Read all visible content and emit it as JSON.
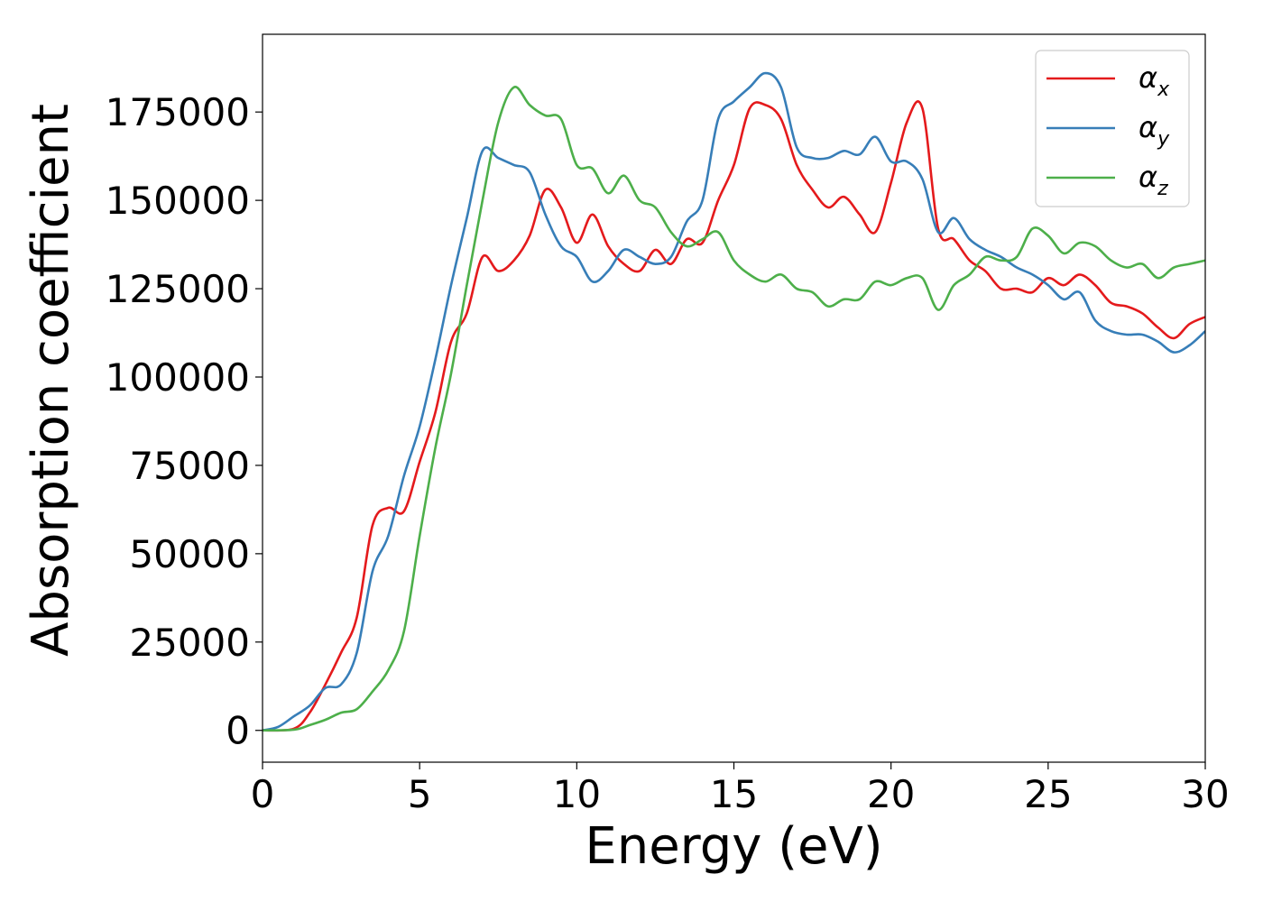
{
  "chart_data": {
    "type": "line",
    "title": "",
    "xlabel": "Energy (eV)",
    "ylabel": "Absorption coefficient",
    "xlim": [
      0,
      30
    ],
    "ylim": [
      -9000,
      197000
    ],
    "xticks": [
      0,
      5,
      10,
      15,
      20,
      25,
      30
    ],
    "yticks": [
      0,
      25000,
      50000,
      75000,
      100000,
      125000,
      150000,
      175000
    ],
    "grid": false,
    "legend_position": "top-right",
    "series": [
      {
        "name": "αx",
        "symbol": "α",
        "subscript": "x",
        "color": "#e41a1c",
        "points": [
          [
            0,
            0
          ],
          [
            1,
            500
          ],
          [
            1.5,
            5000
          ],
          [
            2,
            13000
          ],
          [
            2.5,
            22000
          ],
          [
            3,
            32000
          ],
          [
            3.5,
            58000
          ],
          [
            4,
            63000
          ],
          [
            4.5,
            62000
          ],
          [
            5,
            76000
          ],
          [
            5.5,
            90000
          ],
          [
            6,
            110000
          ],
          [
            6.5,
            118000
          ],
          [
            7,
            134000
          ],
          [
            7.5,
            130000
          ],
          [
            8,
            133000
          ],
          [
            8.5,
            140000
          ],
          [
            9,
            153000
          ],
          [
            9.5,
            148000
          ],
          [
            10,
            138000
          ],
          [
            10.5,
            146000
          ],
          [
            11,
            137000
          ],
          [
            11.5,
            132000
          ],
          [
            12,
            130000
          ],
          [
            12.5,
            136000
          ],
          [
            13,
            132000
          ],
          [
            13.5,
            139000
          ],
          [
            14,
            138000
          ],
          [
            14.5,
            150000
          ],
          [
            15,
            160000
          ],
          [
            15.5,
            176000
          ],
          [
            16,
            177000
          ],
          [
            16.5,
            173000
          ],
          [
            17,
            160000
          ],
          [
            17.5,
            153000
          ],
          [
            18,
            148000
          ],
          [
            18.5,
            151000
          ],
          [
            19,
            146000
          ],
          [
            19.5,
            141000
          ],
          [
            20,
            155000
          ],
          [
            20.5,
            172000
          ],
          [
            21,
            176000
          ],
          [
            21.5,
            142000
          ],
          [
            22,
            139000
          ],
          [
            22.5,
            133000
          ],
          [
            23,
            130000
          ],
          [
            23.5,
            125000
          ],
          [
            24,
            125000
          ],
          [
            24.5,
            124000
          ],
          [
            25,
            128000
          ],
          [
            25.5,
            126000
          ],
          [
            26,
            129000
          ],
          [
            26.5,
            126000
          ],
          [
            27,
            121000
          ],
          [
            27.5,
            120000
          ],
          [
            28,
            118000
          ],
          [
            28.5,
            114000
          ],
          [
            29,
            111000
          ],
          [
            29.5,
            115000
          ],
          [
            30,
            117000
          ]
        ]
      },
      {
        "name": "αy",
        "symbol": "α",
        "subscript": "y",
        "color": "#377eb8",
        "points": [
          [
            0,
            0
          ],
          [
            0.5,
            1000
          ],
          [
            1,
            4000
          ],
          [
            1.5,
            7000
          ],
          [
            2,
            12000
          ],
          [
            2.5,
            13000
          ],
          [
            3,
            22000
          ],
          [
            3.5,
            45000
          ],
          [
            4,
            55000
          ],
          [
            4.5,
            72000
          ],
          [
            5,
            86000
          ],
          [
            5.5,
            105000
          ],
          [
            6,
            126000
          ],
          [
            6.5,
            145000
          ],
          [
            7,
            164000
          ],
          [
            7.5,
            162000
          ],
          [
            8,
            160000
          ],
          [
            8.5,
            158000
          ],
          [
            9,
            146000
          ],
          [
            9.5,
            137000
          ],
          [
            10,
            134000
          ],
          [
            10.5,
            127000
          ],
          [
            11,
            130000
          ],
          [
            11.5,
            136000
          ],
          [
            12,
            134000
          ],
          [
            12.5,
            132000
          ],
          [
            13,
            134000
          ],
          [
            13.5,
            144000
          ],
          [
            14,
            150000
          ],
          [
            14.5,
            173000
          ],
          [
            15,
            178000
          ],
          [
            15.5,
            182000
          ],
          [
            16,
            186000
          ],
          [
            16.5,
            182000
          ],
          [
            17,
            165000
          ],
          [
            17.5,
            162000
          ],
          [
            18,
            162000
          ],
          [
            18.5,
            164000
          ],
          [
            19,
            163000
          ],
          [
            19.5,
            168000
          ],
          [
            20,
            161000
          ],
          [
            20.5,
            161000
          ],
          [
            21,
            156000
          ],
          [
            21.5,
            141000
          ],
          [
            22,
            145000
          ],
          [
            22.5,
            139000
          ],
          [
            23,
            136000
          ],
          [
            23.5,
            134000
          ],
          [
            24,
            131000
          ],
          [
            24.5,
            129000
          ],
          [
            25,
            126000
          ],
          [
            25.5,
            122000
          ],
          [
            26,
            124000
          ],
          [
            26.5,
            116000
          ],
          [
            27,
            113000
          ],
          [
            27.5,
            112000
          ],
          [
            28,
            112000
          ],
          [
            28.5,
            110000
          ],
          [
            29,
            107000
          ],
          [
            29.5,
            109000
          ],
          [
            30,
            113000
          ]
        ]
      },
      {
        "name": "αz",
        "symbol": "α",
        "subscript": "z",
        "color": "#4daf4a",
        "points": [
          [
            0,
            0
          ],
          [
            1,
            200
          ],
          [
            1.5,
            1500
          ],
          [
            2,
            3000
          ],
          [
            2.5,
            5000
          ],
          [
            3,
            6000
          ],
          [
            3.5,
            11000
          ],
          [
            4,
            17000
          ],
          [
            4.5,
            28000
          ],
          [
            5,
            55000
          ],
          [
            5.5,
            80000
          ],
          [
            6,
            101000
          ],
          [
            6.5,
            126000
          ],
          [
            7,
            150000
          ],
          [
            7.5,
            172000
          ],
          [
            8,
            182000
          ],
          [
            8.5,
            177000
          ],
          [
            9,
            174000
          ],
          [
            9.5,
            173000
          ],
          [
            10,
            160000
          ],
          [
            10.5,
            159000
          ],
          [
            11,
            152000
          ],
          [
            11.5,
            157000
          ],
          [
            12,
            150000
          ],
          [
            12.5,
            148000
          ],
          [
            13,
            141000
          ],
          [
            13.5,
            137000
          ],
          [
            14,
            139000
          ],
          [
            14.5,
            141000
          ],
          [
            15,
            133000
          ],
          [
            15.5,
            129000
          ],
          [
            16,
            127000
          ],
          [
            16.5,
            129000
          ],
          [
            17,
            125000
          ],
          [
            17.5,
            124000
          ],
          [
            18,
            120000
          ],
          [
            18.5,
            122000
          ],
          [
            19,
            122000
          ],
          [
            19.5,
            127000
          ],
          [
            20,
            126000
          ],
          [
            20.5,
            128000
          ],
          [
            21,
            128000
          ],
          [
            21.5,
            119000
          ],
          [
            22,
            126000
          ],
          [
            22.5,
            129000
          ],
          [
            23,
            134000
          ],
          [
            23.5,
            133000
          ],
          [
            24,
            134000
          ],
          [
            24.5,
            142000
          ],
          [
            25,
            140000
          ],
          [
            25.5,
            135000
          ],
          [
            26,
            138000
          ],
          [
            26.5,
            137000
          ],
          [
            27,
            133000
          ],
          [
            27.5,
            131000
          ],
          [
            28,
            132000
          ],
          [
            28.5,
            128000
          ],
          [
            29,
            131000
          ],
          [
            29.5,
            132000
          ],
          [
            30,
            133000
          ]
        ]
      }
    ]
  }
}
